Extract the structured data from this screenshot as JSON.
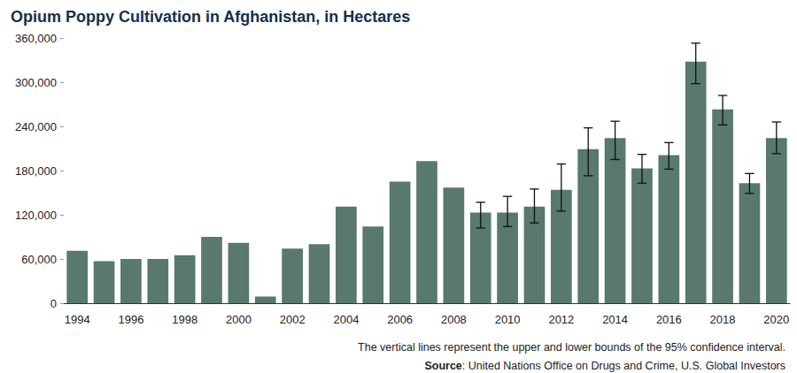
{
  "chart_data": {
    "type": "bar",
    "title": "Opium Poppy Cultivation in Afghanistan, in Hectares",
    "note": "The vertical lines represent the upper and lower bounds of the 95% confidence interval.",
    "source": "Source: United Nations Office on Drugs and Crime, U.S. Global Investors",
    "categories": [
      "1994",
      null,
      "1996",
      null,
      "1998",
      null,
      "2000",
      null,
      "2002",
      null,
      "2004",
      null,
      "2006",
      null,
      "2008",
      null,
      "2010",
      null,
      "2012",
      null,
      "2014",
      null,
      "2016",
      null,
      "2018",
      null,
      "2020"
    ],
    "values": [
      71000,
      57000,
      60000,
      60000,
      65000,
      90000,
      82000,
      9000,
      74000,
      80000,
      131000,
      104000,
      165000,
      193000,
      157000,
      123000,
      123000,
      131000,
      154000,
      209000,
      224000,
      183000,
      201000,
      328000,
      263000,
      163000,
      224000
    ],
    "confidence_interval": [
      null,
      null,
      null,
      null,
      null,
      null,
      null,
      null,
      null,
      null,
      null,
      null,
      null,
      null,
      null,
      [
        102000,
        137000
      ],
      [
        104000,
        145000
      ],
      [
        109000,
        155000
      ],
      [
        125000,
        189000
      ],
      [
        173000,
        238000
      ],
      [
        195000,
        247000
      ],
      [
        163000,
        202000
      ],
      [
        182000,
        218000
      ],
      [
        298000,
        353000
      ],
      [
        242000,
        282000
      ],
      [
        149000,
        176000
      ],
      [
        203000,
        246000
      ]
    ],
    "color": "#587870",
    "ylim": [
      0,
      360000
    ],
    "yticks": [
      0,
      {
        "value": 60000,
        "label": "60,000"
      },
      {
        "value": 120000,
        "label": "120,000"
      },
      {
        "value": 180000,
        "label": "180,000"
      },
      {
        "value": 240000,
        "label": "240,000"
      },
      {
        "value": 300000,
        "label": "300,000"
      },
      {
        "value": 360000,
        "label": "360,000"
      }
    ],
    "grid": false
  }
}
